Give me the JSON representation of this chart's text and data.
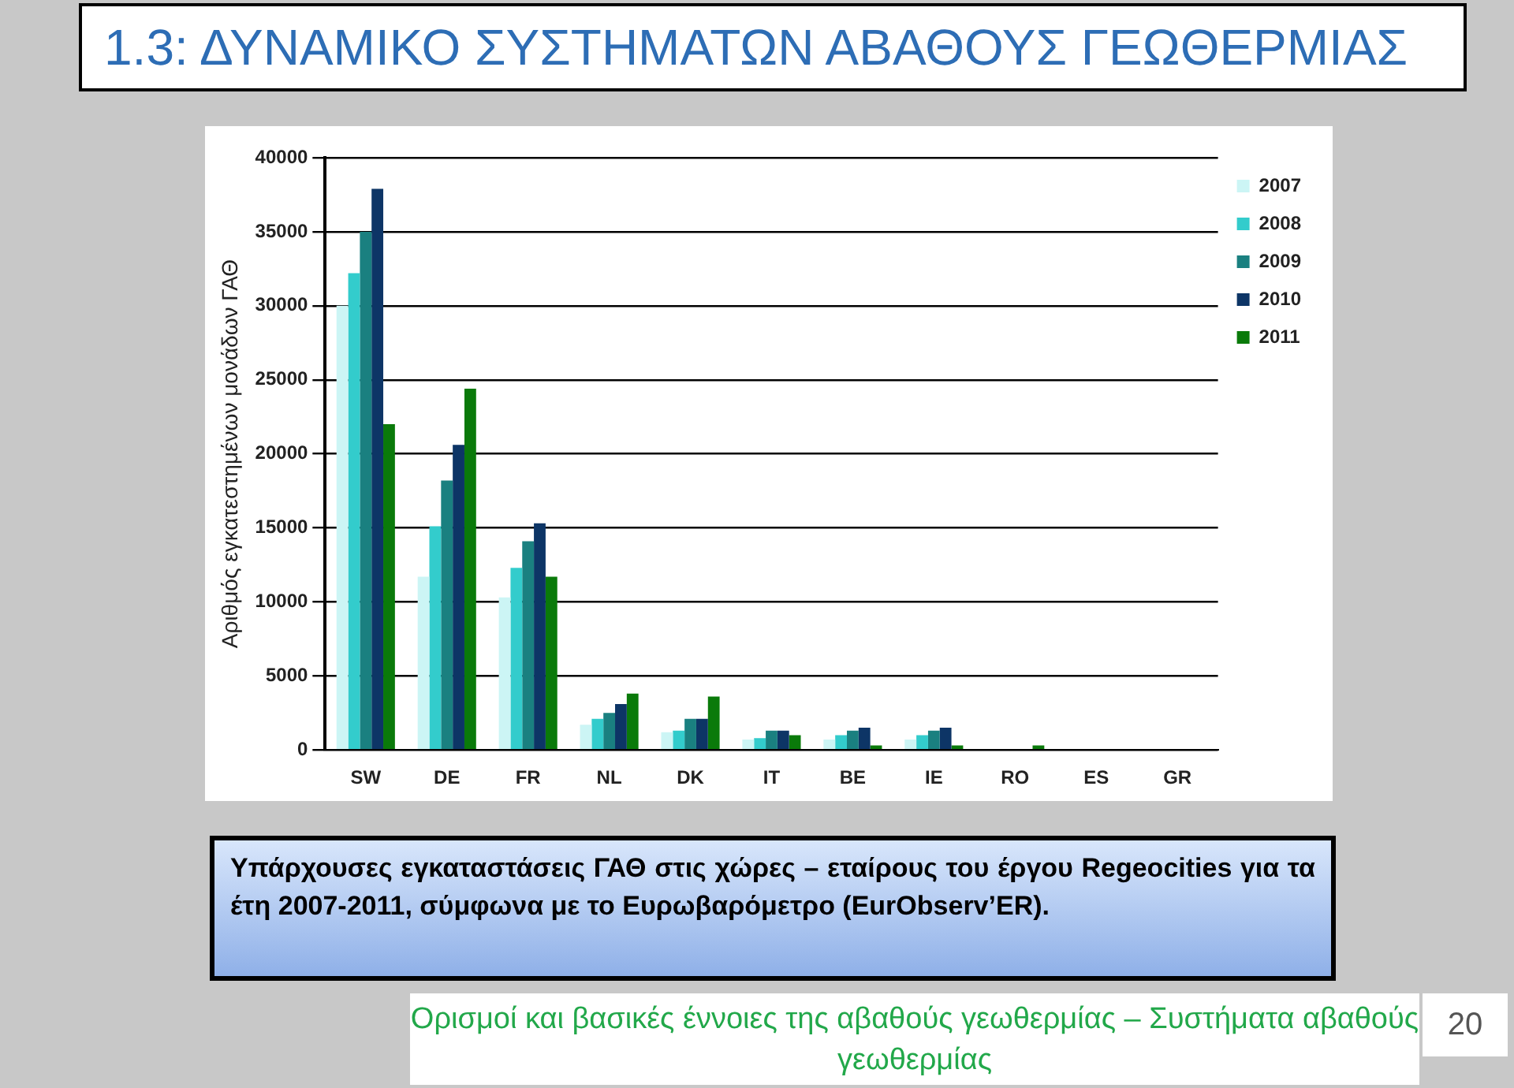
{
  "chart_data": {
    "type": "bar",
    "title": "1.3: ΔΥΝΑΜΙΚΟ ΣΥΣΤΗΜΑΤΩΝ ΑΒΑΘΟΥΣ ΓΕΩΘΕΡΜΙΑΣ",
    "ylabel": "Αριθμός εγκατεστημένων μονάδων ΓΑΘ",
    "categories": [
      "SW",
      "DE",
      "FR",
      "NL",
      "DK",
      "IT",
      "BE",
      "IE",
      "RO",
      "ES",
      "GR"
    ],
    "series": [
      {
        "name": "2007",
        "color": "#ccf5f5",
        "values": [
          30000,
          11700,
          10300,
          1700,
          1200,
          700,
          700,
          700,
          0,
          0,
          0
        ]
      },
      {
        "name": "2008",
        "color": "#33cccc",
        "values": [
          32200,
          15100,
          12300,
          2100,
          1300,
          800,
          1000,
          1000,
          0,
          0,
          0
        ]
      },
      {
        "name": "2009",
        "color": "#1a8080",
        "values": [
          35000,
          18200,
          14100,
          2500,
          2100,
          1300,
          1300,
          1300,
          0,
          0,
          0
        ]
      },
      {
        "name": "2010",
        "color": "#0d3566",
        "values": [
          37900,
          20600,
          15300,
          3100,
          2100,
          1300,
          1500,
          1500,
          0,
          0,
          0
        ]
      },
      {
        "name": "2011",
        "color": "#0a7a0a",
        "values": [
          22000,
          24400,
          11700,
          3800,
          3600,
          1000,
          300,
          300,
          300,
          0,
          0
        ]
      }
    ],
    "ylim": [
      0,
      40000
    ],
    "yticks": [
      0,
      5000,
      10000,
      15000,
      20000,
      25000,
      30000,
      35000,
      40000
    ],
    "grid": "y",
    "legend": "right",
    "annotations": [
      "Υπάρχουσες εγκαταστάσεις ΓΑΘ στις χώρες – εταίρους του έργου Regeocities για τα έτη 2007-2011, σύμφωνα με το Ευρωβαρόμετρο (EurObserv’ER).",
      "Ορισμοί και βασικές έννοιες της αβαθούς γεωθερμίας – Συστήματα αβαθούς γεωθερμίας",
      "20"
    ]
  }
}
